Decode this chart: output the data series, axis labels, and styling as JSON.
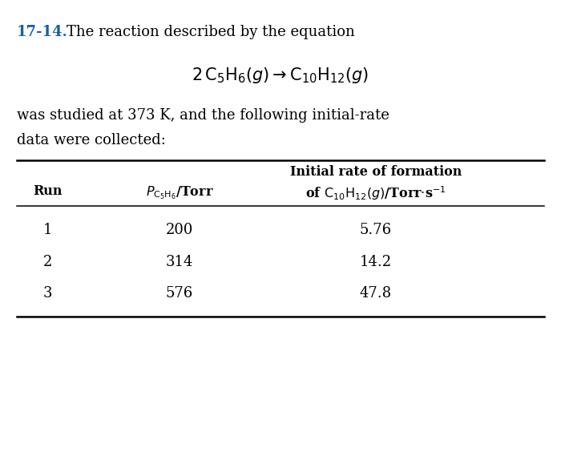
{
  "problem_number": "17-14.",
  "intro_text": "The reaction described by the equation",
  "followup_text_line1": "was studied at 373 K, and the following initial-rate",
  "followup_text_line2": "data were collected:",
  "col1_header": "Run",
  "col3_header_line1": "Initial rate of formation",
  "runs": [
    1,
    2,
    3
  ],
  "pressures": [
    "200",
    "314",
    "576"
  ],
  "rates": [
    "5.76",
    "14.2",
    "47.8"
  ],
  "background_color": "#ffffff",
  "text_color": "#000000",
  "number_color": "#1a5fa8",
  "font_size_body": 13,
  "font_size_eq": 15,
  "font_size_header": 11.5,
  "font_size_data": 13
}
